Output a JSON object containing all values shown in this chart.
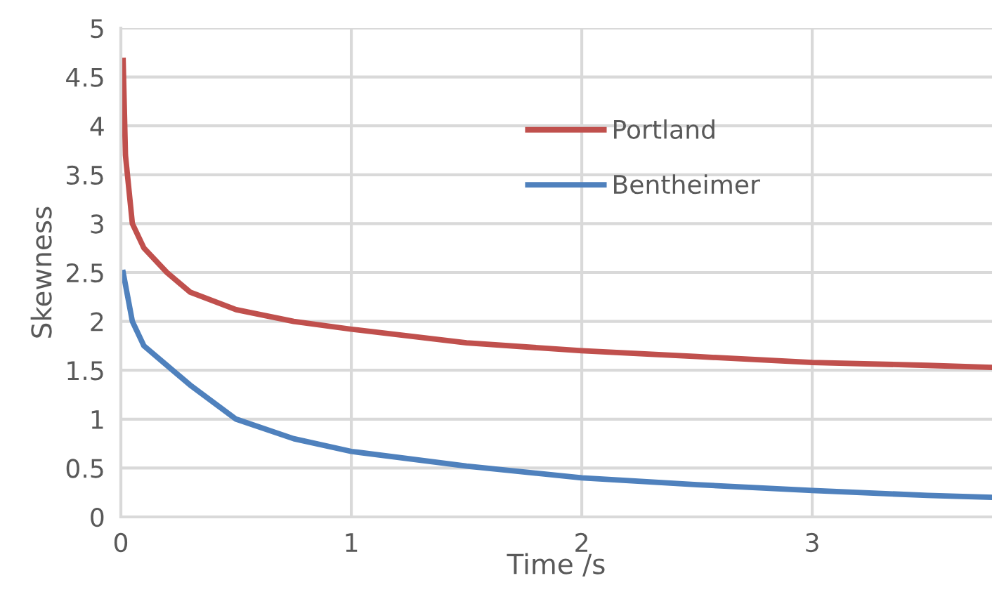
{
  "chart_data": {
    "type": "line",
    "xlabel": "Time /s",
    "ylabel": "Skewness",
    "xlim": [
      0,
      3.78
    ],
    "xticks": [
      0,
      1,
      2,
      3
    ],
    "ylim": [
      0,
      5
    ],
    "yticks": [
      0,
      0.5,
      1,
      1.5,
      2,
      2.5,
      3,
      3.5,
      4,
      4.5,
      5
    ],
    "grid": true,
    "legend": "top right",
    "marker": "none",
    "line_style": "solid",
    "series": [
      {
        "name": "Portland",
        "color": "#c0504d",
        "x": [
          0.01,
          0.02,
          0.05,
          0.1,
          0.2,
          0.3,
          0.5,
          0.75,
          1,
          1.5,
          2,
          2.5,
          3,
          3.5,
          3.78
        ],
        "values": [
          4.67,
          3.7,
          3.0,
          2.75,
          2.5,
          2.3,
          2.12,
          2.0,
          1.92,
          1.78,
          1.7,
          1.64,
          1.58,
          1.55,
          1.53
        ]
      },
      {
        "name": "Bentheimer",
        "color": "#4f81bd",
        "x": [
          0.01,
          0.05,
          0.1,
          0.2,
          0.3,
          0.5,
          0.75,
          1,
          1.5,
          2,
          2.5,
          3,
          3.5,
          3.78
        ],
        "values": [
          2.5,
          2.0,
          1.75,
          1.55,
          1.35,
          1.0,
          0.8,
          0.67,
          0.52,
          0.4,
          0.33,
          0.27,
          0.22,
          0.2
        ]
      }
    ]
  }
}
